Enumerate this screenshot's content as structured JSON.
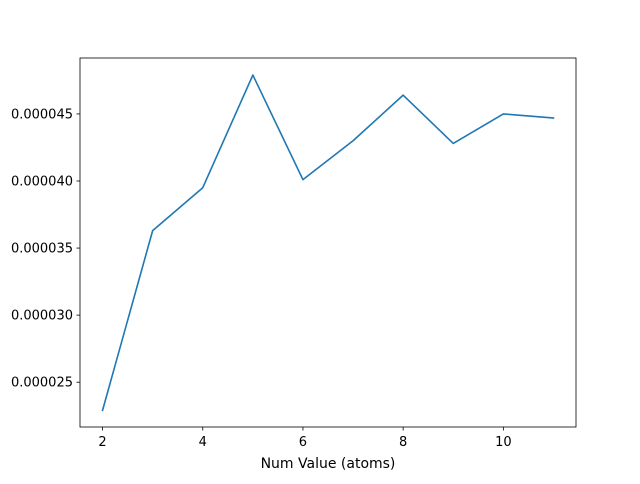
{
  "chart_data": {
    "type": "line",
    "title": "",
    "xlabel": "Num Value (atoms)",
    "ylabel": "",
    "xlim": [
      1.55,
      11.45
    ],
    "ylim": [
      2.166e-05,
      4.917e-05
    ],
    "grid": false,
    "line_color": "#1f77b4",
    "x_ticks": [
      2,
      4,
      6,
      8,
      10
    ],
    "x_tick_labels": [
      "2",
      "4",
      "6",
      "8",
      "10"
    ],
    "y_ticks": [
      2.5e-05,
      3e-05,
      3.5e-05,
      4e-05,
      4.5e-05
    ],
    "y_tick_labels": [
      "0.000025",
      "0.000030",
      "0.000035",
      "0.000040",
      "0.000045"
    ],
    "series": [
      {
        "x": [
          2,
          3,
          4,
          5,
          6,
          7,
          8,
          9,
          10,
          11
        ],
        "y": [
          2.29e-05,
          3.63e-05,
          3.95e-05,
          4.79e-05,
          4.01e-05,
          4.3e-05,
          4.64e-05,
          4.28e-05,
          4.5e-05,
          4.47e-05
        ]
      }
    ]
  }
}
